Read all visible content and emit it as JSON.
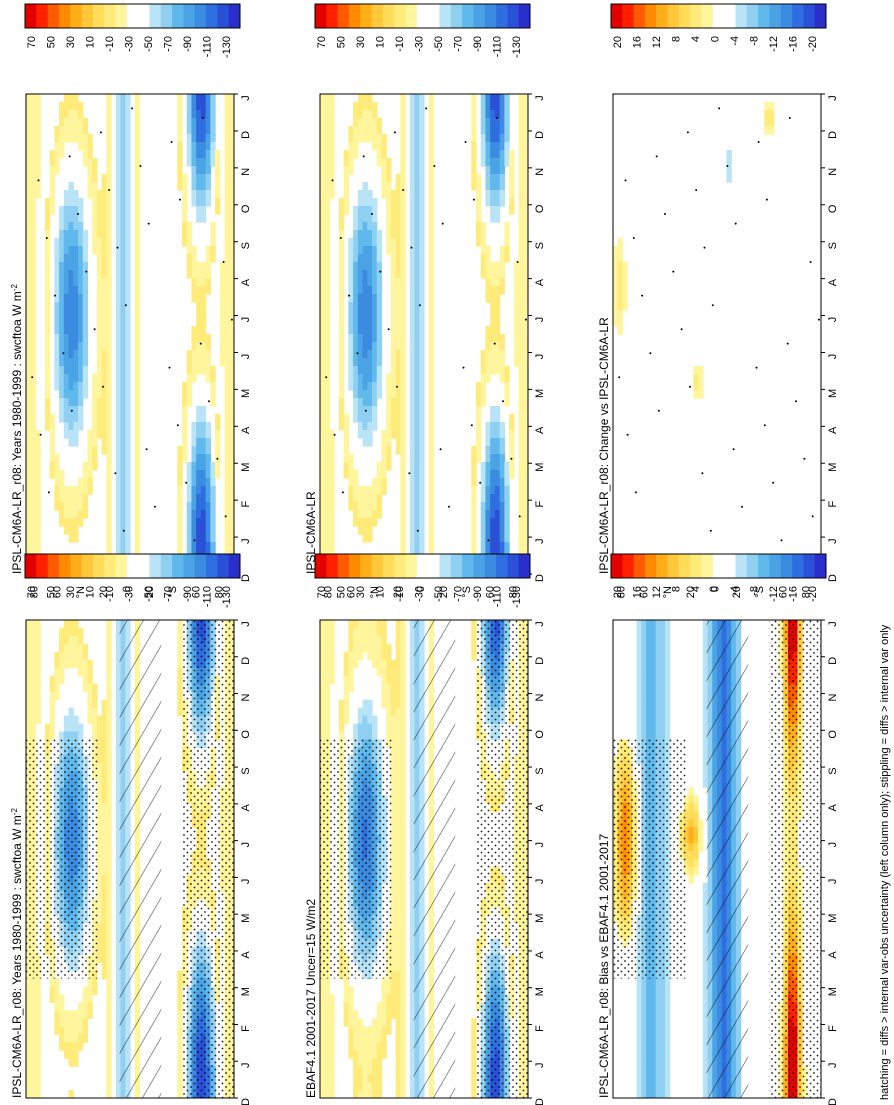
{
  "figure": {
    "footer": "hatching = diffs > internal var-obs uncertainty (left column only); stippling = diffs > internal var only",
    "variable": "swcftoa",
    "units_suffix": "W m"
  },
  "colors": {
    "full": [
      "#e50000",
      "#ff2000",
      "#ff5a00",
      "#ff8a00",
      "#ffae1a",
      "#ffc83a",
      "#ffdc5a",
      "#ffeb7a",
      "#fff59c",
      "#ffffff",
      "#ffffff",
      "#b9e3f6",
      "#8fd0f2",
      "#5fb9ec",
      "#4aa3e4",
      "#3b8be0",
      "#2f6ee0",
      "#2a50d8",
      "#2a2fcc"
    ],
    "diff": [
      "#e50000",
      "#ff2000",
      "#ff5a00",
      "#ff8a00",
      "#ffae1a",
      "#ffc83a",
      "#ffdc5a",
      "#ffeb7a",
      "#fff59c",
      "#ffffff",
      "#ffffff",
      "#b9e3f6",
      "#8fd0f2",
      "#5fb9ec",
      "#4aa3e4",
      "#3b8be0",
      "#2f6ee0",
      "#2a50d8",
      "#2a2fcc"
    ]
  },
  "axes": {
    "months": [
      "D",
      "J",
      "F",
      "M",
      "A",
      "M",
      "J",
      "J",
      "A",
      "S",
      "O",
      "N",
      "D",
      "J"
    ],
    "lat_labels": [
      "80",
      "60",
      "°N",
      "20",
      "0",
      "20",
      "°S",
      "60",
      "80"
    ]
  },
  "colorbars": {
    "full_ticks": [
      "70",
      "50",
      "30",
      "10",
      "-10",
      "-30",
      "-50",
      "-70",
      "-90",
      "-110",
      "-130"
    ],
    "diff_ticks": [
      "20",
      "16",
      "12",
      "8",
      "4",
      "0",
      "-4",
      "-8",
      "-12",
      "-16",
      "-20"
    ]
  },
  "chart_data": [
    {
      "type": "heatmap",
      "title": "IPSL-CM6A-LR_r08: Years 1980-1999 : swcftoa W m",
      "x": [
        "D",
        "J",
        "F",
        "M",
        "A",
        "M",
        "J",
        "J",
        "A",
        "S",
        "O",
        "N",
        "D",
        "J"
      ],
      "y": [
        "80N",
        "60N",
        "20N",
        "0",
        "20S",
        "60S",
        "80S"
      ],
      "colorbar_ticks": [
        70,
        50,
        30,
        10,
        -10,
        -30,
        -50,
        -70,
        -90,
        -110,
        -130
      ],
      "min_value": -130,
      "note": "hatching and stippling"
    },
    {
      "type": "heatmap",
      "title": "EBAF4.1 2001-2017 Uncer=15 W/m2",
      "x": [
        "D",
        "J",
        "F",
        "M",
        "A",
        "M",
        "J",
        "J",
        "A",
        "S",
        "O",
        "N",
        "D",
        "J"
      ],
      "y": [
        "80N",
        "60N",
        "20N",
        "0",
        "20S",
        "60S",
        "80S"
      ],
      "colorbar_ticks": [
        70,
        50,
        30,
        10,
        -10,
        -30,
        -50,
        -70,
        -90,
        -110,
        -130
      ],
      "min_value": -130
    },
    {
      "type": "heatmap",
      "title": "IPSL-CM6A-LR_r08: Bias vs EBAF4.1 2001-2017",
      "x": [
        "D",
        "J",
        "F",
        "M",
        "A",
        "M",
        "J",
        "J",
        "A",
        "S",
        "O",
        "N",
        "D",
        "J"
      ],
      "y": [
        "80N",
        "60N",
        "20N",
        "0",
        "20S",
        "60S",
        "80S"
      ],
      "colorbar_ticks": [
        20,
        16,
        12,
        8,
        4,
        0,
        -4,
        -8,
        -12,
        -16,
        -20
      ],
      "max_value": 20
    },
    {
      "type": "heatmap",
      "title": "IPSL-CM6A-LR_r08: Years 1980-1999 : swcftoa W m",
      "x": [
        "D",
        "J",
        "F",
        "M",
        "A",
        "M",
        "J",
        "J",
        "A",
        "S",
        "O",
        "N",
        "D",
        "J"
      ],
      "y": [
        "80N",
        "60N",
        "20N",
        "0",
        "20S",
        "60S",
        "80S"
      ],
      "colorbar_ticks": [
        70,
        50,
        30,
        10,
        -10,
        -30,
        -50,
        -70,
        -90,
        -110,
        -130
      ],
      "min_value": -130
    },
    {
      "type": "heatmap",
      "title": "IPSL-CM6A-LR",
      "x": [
        "D",
        "J",
        "F",
        "M",
        "A",
        "M",
        "J",
        "J",
        "A",
        "S",
        "O",
        "N",
        "D",
        "J"
      ],
      "y": [
        "80N",
        "60N",
        "20N",
        "0",
        "20S",
        "60S",
        "80S"
      ],
      "colorbar_ticks": [
        70,
        50,
        30,
        10,
        -10,
        -30,
        -50,
        -70,
        -90,
        -110,
        -130
      ],
      "min_value": -130
    },
    {
      "type": "heatmap",
      "title": "IPSL-CM6A-LR_r08: Change vs IPSL-CM6A-LR",
      "x": [
        "D",
        "J",
        "F",
        "M",
        "A",
        "M",
        "J",
        "J",
        "A",
        "S",
        "O",
        "N",
        "D",
        "J"
      ],
      "y": [
        "80N",
        "60N",
        "20N",
        "0",
        "20S",
        "60S",
        "80S"
      ],
      "colorbar_ticks": [
        20,
        16,
        12,
        8,
        4,
        0,
        -4,
        -8,
        -12,
        -16,
        -20
      ],
      "range": [
        -4,
        4
      ]
    }
  ],
  "panels": [
    {
      "id": "left-top",
      "title": "IPSL-CM6A-LR_r08: Years 1980-1999 : swcftoa W m",
      "sup": "-2",
      "kind": "full",
      "hatch": true,
      "stipple": true
    },
    {
      "id": "left-mid",
      "title": "EBAF4.1 2001-2017 Uncer=15 W/m2",
      "sup": "",
      "kind": "full",
      "hatch": true,
      "stipple": true
    },
    {
      "id": "left-bot",
      "title": "IPSL-CM6A-LR_r08: Bias vs EBAF4.1 2001-2017",
      "sup": "",
      "kind": "bias",
      "hatch": true,
      "stipple": true
    },
    {
      "id": "right-top",
      "title": "IPSL-CM6A-LR_r08: Years 1980-1999 : swcftoa W m",
      "sup": "-2",
      "kind": "full",
      "hatch": false,
      "stipple": true
    },
    {
      "id": "right-mid",
      "title": "IPSL-CM6A-LR",
      "sup": "",
      "kind": "full",
      "hatch": false,
      "stipple": true
    },
    {
      "id": "right-bot",
      "title": "IPSL-CM6A-LR_r08: Change vs IPSL-CM6A-LR",
      "sup": "",
      "kind": "change",
      "hatch": false,
      "stipple": true
    }
  ]
}
